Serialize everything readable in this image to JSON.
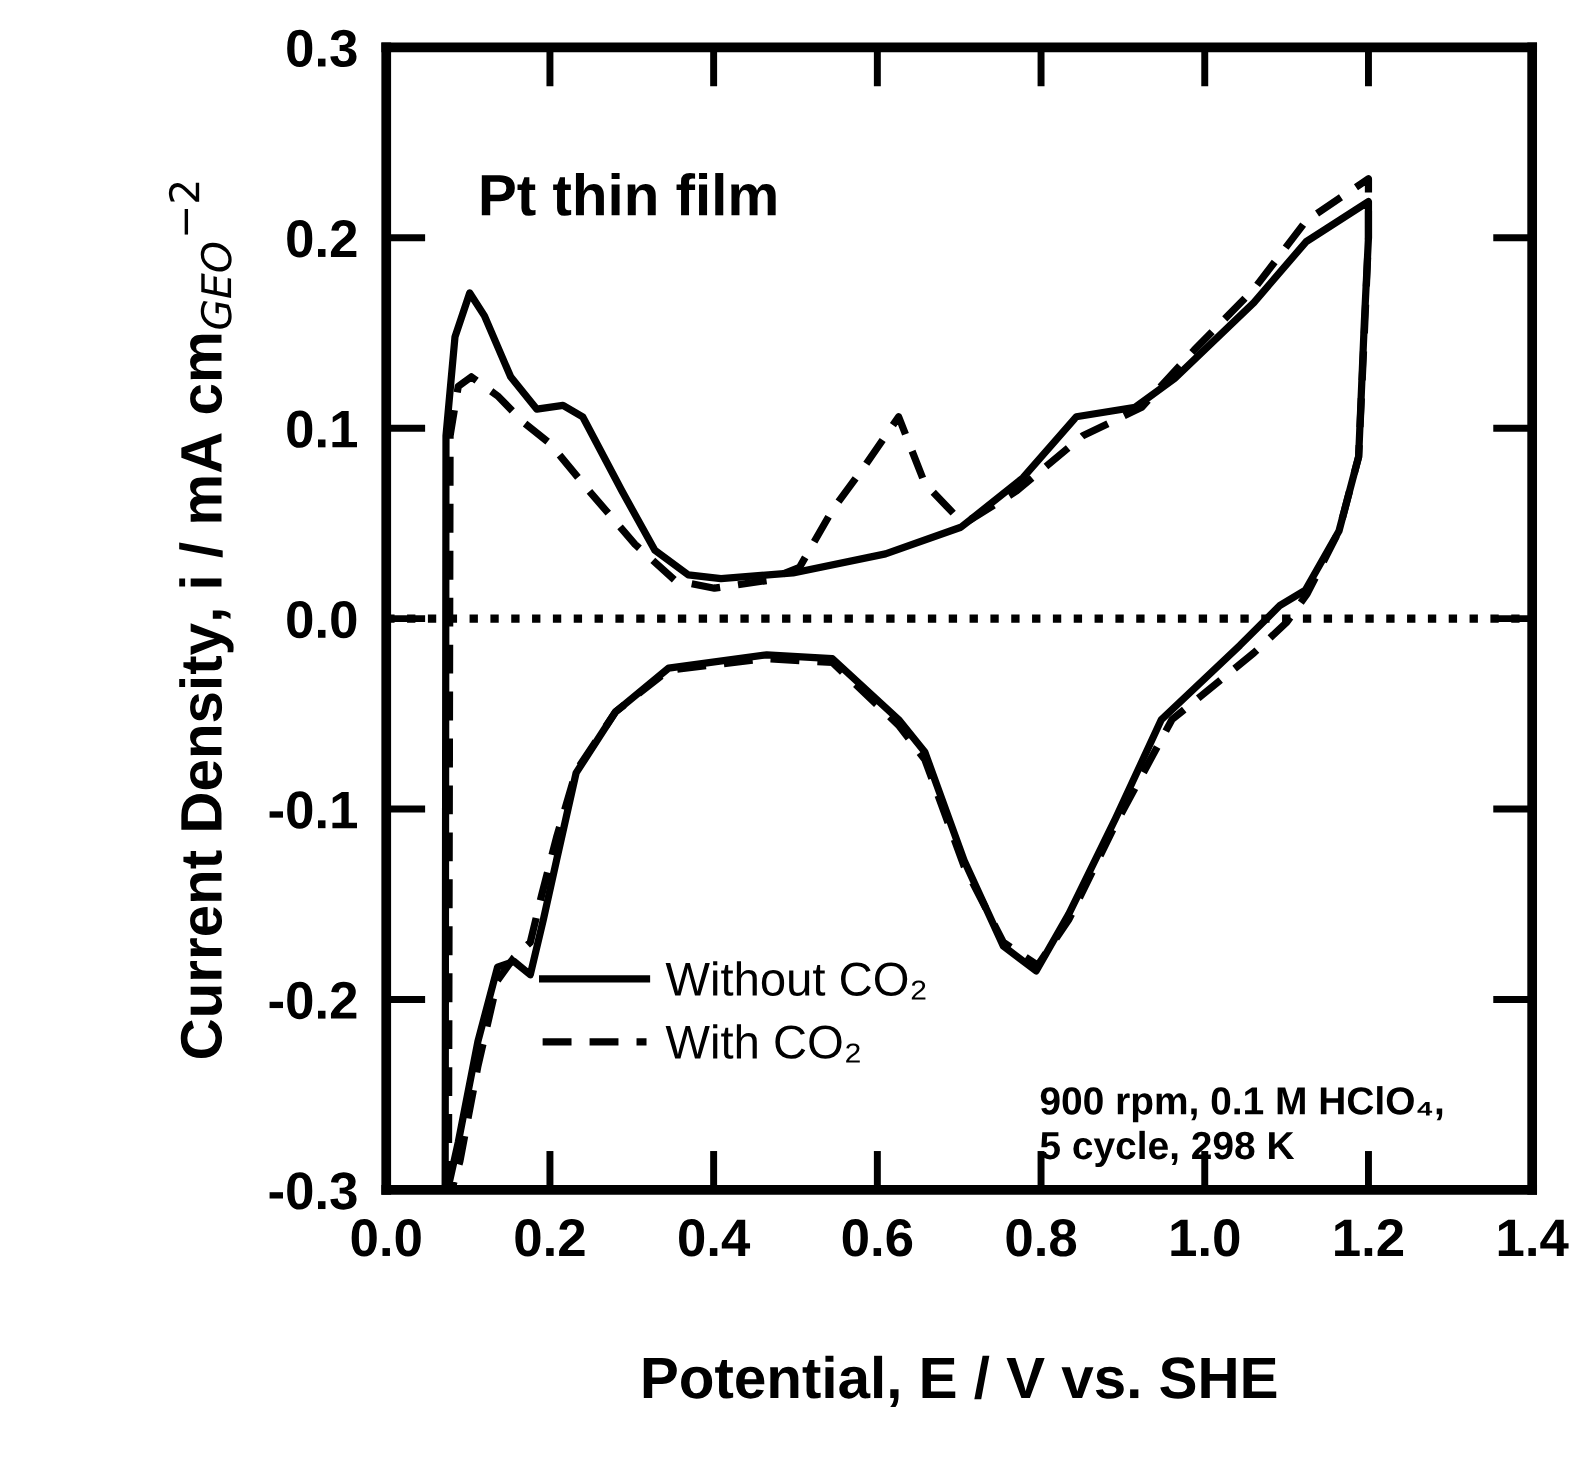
{
  "chart_data": {
    "type": "line",
    "xlabel": "Potential, E / V vs. SHE",
    "ylabel": "Current Density, i / mA cm$_{GEO}$$^{−2}$",
    "xlim": [
      0,
      1.4
    ],
    "ylim": [
      -0.3,
      0.3
    ],
    "xticks": [
      {
        "value": 0,
        "label": "0.0"
      },
      0.2,
      0.4,
      0.6,
      0.8,
      {
        "value": 1,
        "label": "1.0"
      },
      1.2,
      1.4
    ],
    "yticks": [
      -0.3,
      -0.2,
      -0.1,
      {
        "value": 0,
        "label": "0.0"
      },
      0.1,
      0.2,
      0.3
    ],
    "grid": false,
    "legend": "bottom left",
    "marker": "none",
    "ref_lines": [
      {
        "axis": "y",
        "value": 0,
        "color": "#000000",
        "line_style": "dotted"
      }
    ],
    "annotations": [
      {
        "text": "Pt thin film"
      },
      {
        "text": "900 rpm, 0.1 M HClO₄,\n5 cycle, 298 K"
      }
    ],
    "series": [
      {
        "name": "Without CO₂",
        "color": "#000000",
        "line_style": "solid",
        "x": [
          0.072,
          0.073,
          0.084,
          0.102,
          0.12,
          0.152,
          0.184,
          0.216,
          0.24,
          0.288,
          0.328,
          0.369,
          0.409,
          0.497,
          0.61,
          0.702,
          0.714,
          0.778,
          0.843,
          0.915,
          0.963,
          1.06,
          1.124,
          1.2,
          1.2,
          1.195,
          1.188,
          1.164,
          1.123,
          1.092,
          1.043,
          0.947,
          0.891,
          0.834,
          0.794,
          0.754,
          0.706,
          0.658,
          0.626,
          0.545,
          0.465,
          0.345,
          0.28,
          0.232,
          0.208,
          0.192,
          0.176,
          0.156,
          0.136,
          0.112,
          0.088,
          0.075
        ],
        "values": [
          -0.3,
          0.096,
          0.148,
          0.171,
          0.159,
          0.127,
          0.11,
          0.112,
          0.106,
          0.067,
          0.036,
          0.023,
          0.021,
          0.024,
          0.034,
          0.048,
          0.052,
          0.074,
          0.106,
          0.111,
          0.126,
          0.166,
          0.198,
          0.219,
          0.2,
          0.156,
          0.085,
          0.046,
          0.015,
          0.007,
          -0.014,
          -0.053,
          -0.105,
          -0.155,
          -0.185,
          -0.172,
          -0.127,
          -0.07,
          -0.053,
          -0.021,
          -0.019,
          -0.026,
          -0.049,
          -0.081,
          -0.127,
          -0.158,
          -0.187,
          -0.18,
          -0.183,
          -0.222,
          -0.275,
          -0.3
        ]
      },
      {
        "name": "With CO₂",
        "color": "#000000",
        "line_style": "dashed",
        "x": [
          0.076,
          0.078,
          0.088,
          0.104,
          0.136,
          0.168,
          0.2,
          0.248,
          0.304,
          0.353,
          0.401,
          0.465,
          0.505,
          0.545,
          0.586,
          0.626,
          0.658,
          0.698,
          0.714,
          0.77,
          0.851,
          0.923,
          0.987,
          1.06,
          1.124,
          1.2,
          1.2,
          1.195,
          1.188,
          1.164,
          1.125,
          1.1,
          1.06,
          0.96,
          0.891,
          0.834,
          0.796,
          0.754,
          0.706,
          0.658,
          0.626,
          0.545,
          0.465,
          0.345,
          0.28,
          0.232,
          0.208,
          0.19,
          0.176,
          0.156,
          0.136,
          0.112,
          0.09,
          0.08
        ],
        "values": [
          -0.3,
          0.096,
          0.122,
          0.127,
          0.117,
          0.103,
          0.092,
          0.067,
          0.039,
          0.02,
          0.016,
          0.02,
          0.027,
          0.057,
          0.081,
          0.106,
          0.071,
          0.053,
          0.052,
          0.067,
          0.096,
          0.111,
          0.141,
          0.173,
          0.209,
          0.231,
          0.2,
          0.15,
          0.085,
          0.046,
          0.013,
          -0.002,
          -0.018,
          -0.053,
          -0.108,
          -0.158,
          -0.182,
          -0.17,
          -0.13,
          -0.074,
          -0.056,
          -0.023,
          -0.021,
          -0.027,
          -0.049,
          -0.08,
          -0.115,
          -0.145,
          -0.17,
          -0.178,
          -0.19,
          -0.235,
          -0.285,
          -0.3
        ]
      }
    ]
  }
}
